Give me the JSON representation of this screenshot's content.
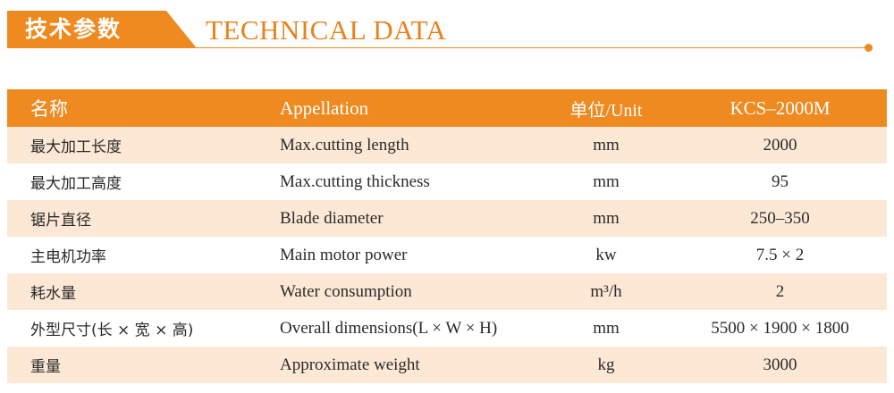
{
  "header": {
    "title_cn": "技术参数",
    "title_en": "TECHNICAL DATA"
  },
  "table": {
    "columns": [
      "名称",
      "Appellation",
      "单位/Unit",
      "KCS–2000M"
    ],
    "rows": [
      {
        "name_cn": "最大加工长度",
        "appellation": "Max.cutting length",
        "unit": "mm",
        "value": "2000"
      },
      {
        "name_cn": "最大加工高度",
        "appellation": "Max.cutting thickness",
        "unit": "mm",
        "value": "95"
      },
      {
        "name_cn": "锯片直径",
        "appellation": "Blade diameter",
        "unit": "mm",
        "value": "250–350"
      },
      {
        "name_cn": "主电机功率",
        "appellation": "Main motor power",
        "unit": "kw",
        "value": "7.5 × 2"
      },
      {
        "name_cn": "耗水量",
        "appellation": "Water consumption",
        "unit": "m³/h",
        "value": "2"
      },
      {
        "name_cn": "外型尺寸(长 × 宽 × 高)",
        "appellation": "Overall dimensions(L × W × H)",
        "unit": "mm",
        "value": "5500 × 1900 × 1800"
      },
      {
        "name_cn": "重量",
        "appellation": "Approximate weight",
        "unit": "kg",
        "value": "3000"
      }
    ]
  },
  "colors": {
    "accent": "#ee8a1f",
    "row_alt": "#fde8d6"
  }
}
